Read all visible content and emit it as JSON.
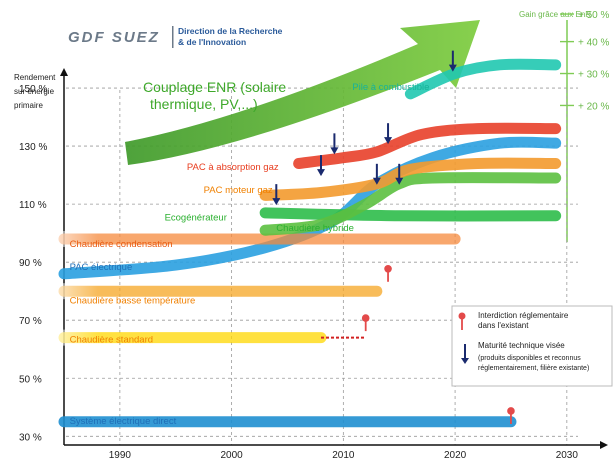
{
  "header": {
    "logo_text": "GDF SUEZ",
    "org_line1": "Direction de la Recherche",
    "org_line2": "& de l'Innovation"
  },
  "chart_data": {
    "type": "area",
    "ylabel_lines": [
      "Rendement",
      "sur énergie",
      "primaire"
    ],
    "y_ticks": [
      {
        "label": "30 %",
        "value": 30
      },
      {
        "label": "50 %",
        "value": 50
      },
      {
        "label": "70 %",
        "value": 70
      },
      {
        "label": "90 %",
        "value": 90
      },
      {
        "label": "110 %",
        "value": 110
      },
      {
        "label": "130 %",
        "value": 130
      },
      {
        "label": "150 %",
        "value": 150
      }
    ],
    "x_ticks": [
      {
        "label": "1990",
        "value": 1990
      },
      {
        "label": "2000",
        "value": 2000
      },
      {
        "label": "2010",
        "value": 2010
      },
      {
        "label": "2020",
        "value": 2020
      },
      {
        "label": "2030",
        "value": 2030
      }
    ],
    "xlim": [
      1985,
      2031
    ],
    "ylim": [
      27,
      170
    ],
    "gain_axis": {
      "title": "Gain grâce aux EnR",
      "ticks": [
        {
          "label": "+ 20 %",
          "value": 144
        },
        {
          "label": "+ 30 %",
          "value": 155
        },
        {
          "label": "+ 40 %",
          "value": 166
        },
        {
          "label": "+ 50 %",
          "value": 175.5
        }
      ]
    },
    "arrow_label_lines": [
      "Couplage ENR (solaire",
      "thermique, PV,...)"
    ],
    "series": [
      {
        "name": "Système électrique direct",
        "color": "#1f8fd0",
        "points": [
          [
            1985,
            35
          ],
          [
            2025,
            35
          ]
        ],
        "label_at": [
          1985.5,
          35.5
        ],
        "label_color": "#1f6fb8"
      },
      {
        "name": "Chaudière standard",
        "color": "#ffd700",
        "points": [
          [
            1985,
            64
          ],
          [
            2008,
            64
          ]
        ],
        "label_at": [
          1985.5,
          63.5
        ],
        "label_color": "#f08000",
        "fade": true
      },
      {
        "name": "Chaudière basse température",
        "color": "#f5a623",
        "points": [
          [
            1985,
            80
          ],
          [
            2013,
            80
          ]
        ],
        "label_at": [
          1985.5,
          77
        ],
        "label_color": "#f08000",
        "fade": true
      },
      {
        "name": "PAC électrique",
        "color": "#2aa0e0",
        "points": [
          [
            1985,
            86
          ],
          [
            1995,
            89
          ],
          [
            2003,
            95
          ],
          [
            2009,
            104
          ],
          [
            2013,
            117
          ],
          [
            2018,
            126
          ],
          [
            2024,
            131
          ],
          [
            2029,
            131
          ]
        ],
        "label_at": [
          1985.5,
          88.5
        ],
        "label_color": "#1f6fb8"
      },
      {
        "name": "Chaudière condensation",
        "color": "#f58a3c",
        "points": [
          [
            1985,
            98
          ],
          [
            2000,
            98
          ],
          [
            2020,
            98
          ]
        ],
        "label_at": [
          1985.5,
          96.5
        ],
        "label_color": "#e85a10",
        "fade": true
      },
      {
        "name": "Ecogénérateur",
        "color": "#2ebd4a",
        "points": [
          [
            2003,
            107
          ],
          [
            2015,
            106
          ],
          [
            2029,
            106
          ]
        ],
        "label_at": [
          1994,
          105.5
        ],
        "label_color": "#2bb030"
      },
      {
        "name": "Chaudière hybride",
        "color": "#5cc040",
        "points": [
          [
            2003,
            101
          ],
          [
            2008,
            103
          ],
          [
            2012,
            110
          ],
          [
            2015,
            117
          ],
          [
            2018,
            119
          ],
          [
            2029,
            119
          ]
        ],
        "label_at": [
          2004,
          102
        ],
        "label_color": "#2bb030"
      },
      {
        "name": "PAC moteur gaz",
        "color": "#f39a2e",
        "points": [
          [
            2003,
            113
          ],
          [
            2008,
            114
          ],
          [
            2013,
            117
          ],
          [
            2016,
            122
          ],
          [
            2022,
            124
          ],
          [
            2029,
            124
          ]
        ],
        "label_at": [
          1997.5,
          115
        ],
        "label_color": "#f08000"
      },
      {
        "name": "PAC à absorption  gaz",
        "color": "#e8402a",
        "points": [
          [
            2006,
            124
          ],
          [
            2010,
            126
          ],
          [
            2013,
            128
          ],
          [
            2017,
            134
          ],
          [
            2022,
            136
          ],
          [
            2029,
            136
          ]
        ],
        "label_at": [
          1996,
          123
        ],
        "label_color": "#e83c1e"
      },
      {
        "name": "Pile à combustible",
        "color": "#20c8b0",
        "points": [
          [
            2016,
            148
          ],
          [
            2020,
            155
          ],
          [
            2024,
            158
          ],
          [
            2029,
            158
          ]
        ],
        "label_at": [
          2010.8,
          150.5
        ],
        "label_color": "#17b39a"
      }
    ],
    "maturity_arrows_years": [
      [
        2009.2,
        127.5
      ],
      [
        2014,
        131
      ],
      [
        2008,
        120
      ],
      [
        2013,
        117
      ],
      [
        2015,
        117
      ],
      [
        2004,
        110
      ],
      [
        2019.8,
        156
      ]
    ],
    "ban_markers": [
      [
        2014,
        86
      ],
      [
        2012,
        69
      ],
      [
        2025,
        37
      ]
    ],
    "dotted_segment": [
      [
        2008,
        64
      ],
      [
        2012,
        64
      ]
    ],
    "legend": {
      "placement": "bottom-right",
      "ban_label_lines": [
        "Interdiction réglementaire",
        "dans l'existant"
      ],
      "maturity_label_lines": [
        "Maturité technique  visée",
        "(produits disponibles  et reconnus",
        "réglementairement, filière existante)"
      ]
    }
  }
}
